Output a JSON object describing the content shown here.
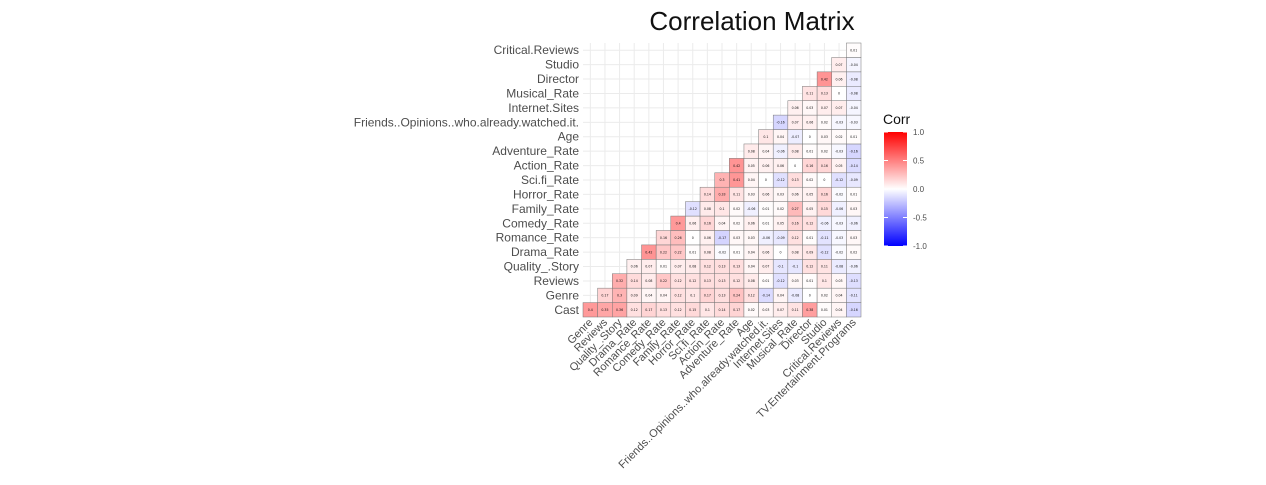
{
  "chart_data": {
    "type": "heatmap",
    "title": "Correlation Matrix",
    "y_variables": [
      "Cast",
      "Genre",
      "Reviews",
      "Quality_.Story",
      "Drama_Rate",
      "Romance_Rate",
      "Comedy_Rate",
      "Family_Rate",
      "Horror_Rate",
      "Sci.fi_Rate",
      "Action_Rate",
      "Adventure_Rate",
      "Age",
      "Friends..Opinions..who.already.watched.it.",
      "Internet.Sites",
      "Musical_Rate",
      "Director",
      "Studio",
      "Critical.Reviews"
    ],
    "x_variables": [
      "Genre",
      "Reviews",
      "Quality_.Story",
      "Drama_Rate",
      "Romance_Rate",
      "Comedy_Rate",
      "Family_Rate",
      "Horror_Rate",
      "Sci.fi_Rate",
      "Action_Rate",
      "Adventure_Rate",
      "Age",
      "Friends..Opinions..who.already.watched.it.",
      "Internet.Sites",
      "Musical_Rate",
      "Director",
      "Studio",
      "Critical.Reviews",
      "TV.Entertainment.Programs"
    ],
    "values": [
      [
        0.4,
        0.35,
        0.36,
        0.12,
        0.17,
        0.13,
        0.12,
        0.15,
        0.1,
        0.14,
        0.17,
        0.02,
        0.03,
        0.07,
        0.11,
        0.38,
        0.01,
        0.04,
        -0.16
      ],
      [
        0.17,
        0.3,
        0.09,
        0.04,
        0.04,
        0.12,
        0.1,
        0.17,
        0.13,
        0.24,
        0.12,
        -0.14,
        0.04,
        -0.08,
        0,
        0.02,
        0.04,
        -0.11
      ],
      [
        0.32,
        0.14,
        0.08,
        0.22,
        0.12,
        0.12,
        0.13,
        0.13,
        0.12,
        0.08,
        0.01,
        -0.12,
        0.03,
        0.01,
        0.1,
        0.03,
        -0.13
      ],
      [
        0.06,
        0.07,
        0.01,
        0.07,
        0.08,
        0.12,
        0.13,
        0.13,
        0.04,
        0.07,
        -0.1,
        -0.1,
        0.12,
        0.11,
        -0.08,
        -0.06
      ],
      [
        0.42,
        0.22,
        0.22,
        0.01,
        0.08,
        -0.02,
        0.01,
        0.04,
        0.06,
        0,
        0.08,
        0.09,
        -0.12,
        -0.02,
        0.02
      ],
      [
        0.16,
        0.26,
        0,
        0.06,
        -0.17,
        0.03,
        0.03,
        -0.06,
        -0.09,
        0.12,
        0.01,
        -0.11,
        -0.03,
        0.03
      ],
      [
        0.4,
        0.06,
        0.16,
        0.04,
        0.02,
        0.06,
        0.01,
        0.05,
        0.16,
        0.12,
        -0.06,
        -0.03,
        -0.06
      ],
      [
        -0.12,
        0.08,
        0.1,
        0.02,
        -0.06,
        0.01,
        0.02,
        0.27,
        0.05,
        0.15,
        -0.06,
        0.03
      ],
      [
        0.14,
        0.33,
        0.11,
        0.03,
        0.06,
        0.03,
        0.06,
        0.05,
        0.16,
        -0.02,
        0.01
      ],
      [
        0.3,
        0.41,
        0.04,
        0,
        -0.12,
        0.13,
        0.02,
        0,
        -0.12,
        -0.09
      ],
      [
        0.42,
        0.05,
        0.06,
        0.06,
        0,
        0.16,
        0.16,
        0.05,
        -0.14
      ],
      [
        0.08,
        0.04,
        -0.06,
        0.08,
        0.01,
        0.02,
        -0.03,
        -0.16
      ],
      [
        0.1,
        0.04,
        -0.07,
        0,
        0.03,
        0.02,
        0.01
      ],
      [
        -0.16,
        0.07,
        0.06,
        0.02,
        -0.03,
        -0.03
      ],
      [
        0.06,
        0.03,
        0.07,
        0.07,
        -0.04
      ],
      [
        0.11,
        0.13,
        0,
        -0.08
      ],
      [
        0.42,
        0.06,
        -0.08
      ],
      [
        0.07,
        -0.04
      ],
      [
        0.01
      ]
    ],
    "legend": {
      "title": "Corr",
      "ticks": [
        "1.0",
        "0.5",
        "0.0",
        "-0.5",
        "-1.0"
      ],
      "tick_values": [
        1,
        0.5,
        0,
        -0.5,
        -1
      ],
      "range": [
        -1,
        1
      ],
      "low_color": "#0000FF",
      "mid_color": "#FFFFFF",
      "high_color": "#FF0000",
      "placement": "right"
    },
    "grid": true,
    "layout": "lower-triangle"
  }
}
